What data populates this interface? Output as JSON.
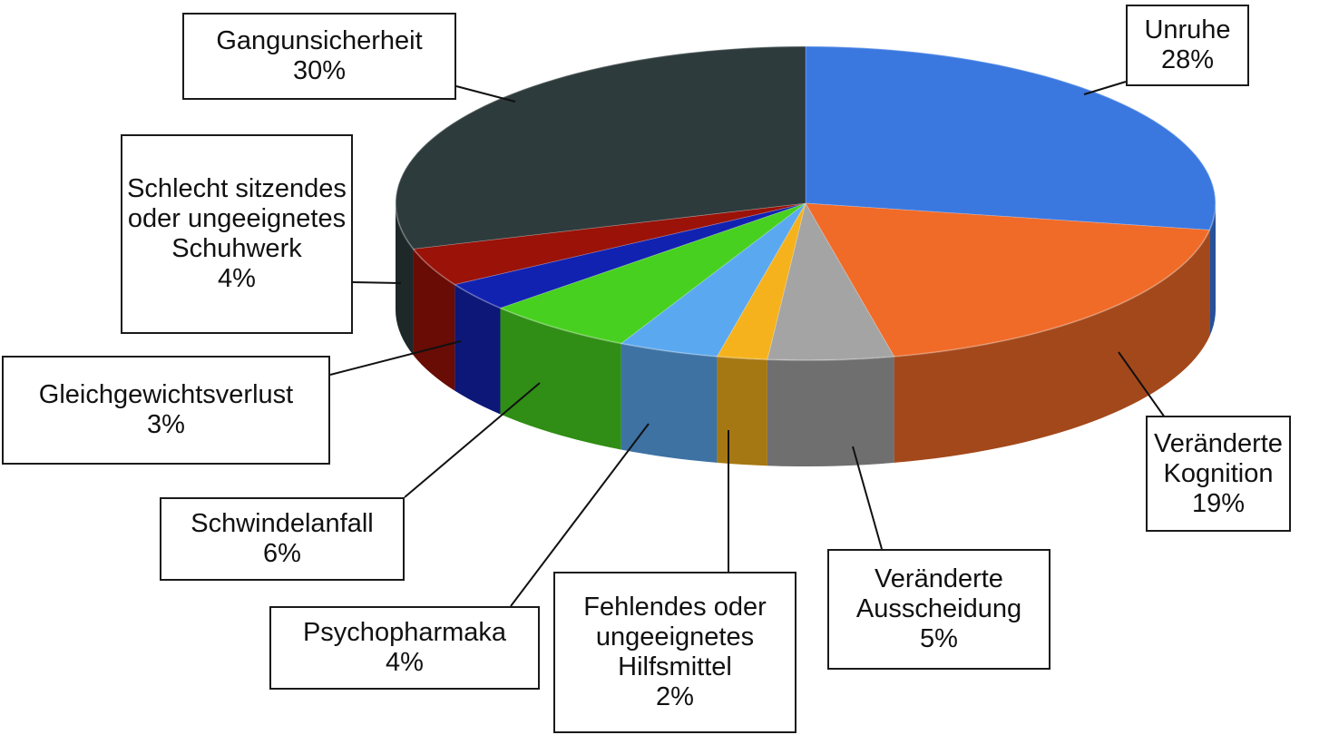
{
  "chart_data": {
    "type": "pie",
    "style": "3d",
    "slices": [
      {
        "label": "Unruhe",
        "value": 28,
        "value_label": "28%",
        "color": "#3a78e0"
      },
      {
        "label": "Veränderte Kognition",
        "value": 19,
        "value_label": "19%",
        "color": "#f06a28"
      },
      {
        "label": "Veränderte Ausscheidung",
        "value": 5,
        "value_label": "5%",
        "color": "#a4a4a4"
      },
      {
        "label": "Fehlendes oder ungeeignetes Hilfsmittel",
        "value": 2,
        "value_label": "2%",
        "color": "#f5b21c"
      },
      {
        "label": "Psychopharmaka",
        "value": 4,
        "value_label": "4%",
        "color": "#5aa8f0"
      },
      {
        "label": "Schwindelanfall",
        "value": 6,
        "value_label": "6%",
        "color": "#48d020"
      },
      {
        "label": "Gleichgewichtsverlust",
        "value": 3,
        "value_label": "3%",
        "color": "#1222b0"
      },
      {
        "label": "Schlecht sitzendes oder ungeeignetes Schuhwerk",
        "value": 4,
        "value_label": "4%",
        "color": "#9a1208"
      },
      {
        "label": "Gangunsicherheit",
        "value": 30,
        "value_label": "30%",
        "color": "#2e3b3c"
      }
    ]
  }
}
